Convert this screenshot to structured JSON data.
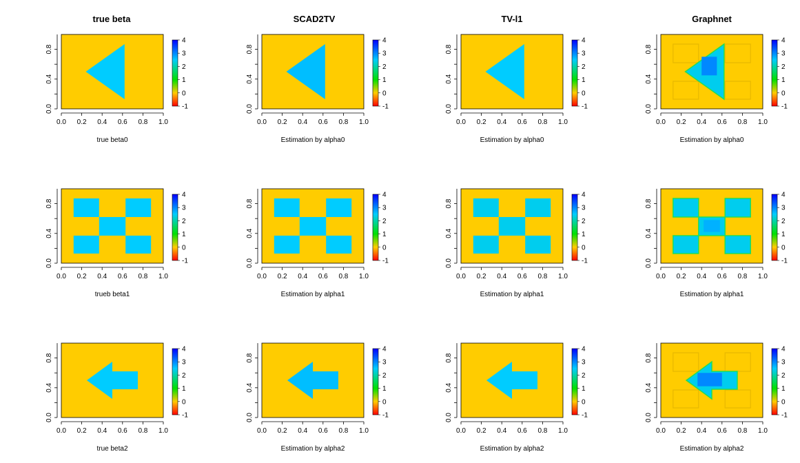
{
  "figure": {
    "column_titles": [
      "true beta",
      "SCAD2TV",
      "TV-l1",
      "Graphnet"
    ]
  },
  "colors": {
    "background_field": "#FFCC00",
    "signal_region": "#1ACCF2",
    "signal_region_strong": "#1080E8",
    "colorbar_stops": [
      "#FF0000",
      "#FFCC00",
      "#00E000",
      "#00CCFF",
      "#0000FF"
    ]
  },
  "chart_data": [
    {
      "type": "heatmap",
      "row": 0,
      "col": 0,
      "method": "true beta",
      "shape": "triangle",
      "xlabel": "true beta0",
      "xlim": [
        0,
        1
      ],
      "ylim": [
        0,
        1
      ],
      "x_ticks": [
        "0.0",
        "0.2",
        "0.4",
        "0.6",
        "0.8",
        "1.0"
      ],
      "y_ticks": [
        "0.0",
        "0.4",
        "0.8"
      ],
      "colorbar_range": [
        -1,
        4
      ],
      "colorbar_ticks": [
        "-1",
        "0",
        "1",
        "2",
        "3",
        "4"
      ],
      "background_value": 0,
      "region_value": 2.5
    },
    {
      "type": "heatmap",
      "row": 0,
      "col": 1,
      "method": "SCAD2TV",
      "shape": "triangle",
      "xlabel": "Estimation by alpha0",
      "xlim": [
        0,
        1
      ],
      "ylim": [
        0,
        1
      ],
      "x_ticks": [
        "0.0",
        "0.2",
        "0.4",
        "0.6",
        "0.8",
        "1.0"
      ],
      "y_ticks": [
        "0.0",
        "0.4",
        "0.8"
      ],
      "colorbar_range": [
        -1,
        4
      ],
      "colorbar_ticks": [
        "-1",
        "0",
        "1",
        "2",
        "3",
        "4"
      ],
      "background_value": 0,
      "region_value": 2.6
    },
    {
      "type": "heatmap",
      "row": 0,
      "col": 2,
      "method": "TV-l1",
      "shape": "triangle",
      "xlabel": "Estimation by alpha0",
      "xlim": [
        0,
        1
      ],
      "ylim": [
        0,
        1
      ],
      "x_ticks": [
        "0.0",
        "0.2",
        "0.4",
        "0.6",
        "0.8",
        "1.0"
      ],
      "y_ticks": [
        "0.0",
        "0.4",
        "0.8"
      ],
      "colorbar_range": [
        -1,
        4
      ],
      "colorbar_ticks": [
        "-1",
        "0",
        "1",
        "2",
        "3",
        "4"
      ],
      "background_value": 0,
      "region_value": 2.5
    },
    {
      "type": "heatmap",
      "row": 0,
      "col": 3,
      "method": "Graphnet",
      "shape": "triangle",
      "xlabel": "Estimation by alpha0",
      "xlim": [
        0,
        1
      ],
      "ylim": [
        0,
        1
      ],
      "x_ticks": [
        "0.0",
        "0.2",
        "0.4",
        "0.6",
        "0.8",
        "1.0"
      ],
      "y_ticks": [
        "0.0",
        "0.4",
        "0.8"
      ],
      "colorbar_range": [
        -1,
        4
      ],
      "colorbar_ticks": [
        "-1",
        "0",
        "1",
        "2",
        "3",
        "4"
      ],
      "background_value": 0,
      "region_value": 3.0
    },
    {
      "type": "heatmap",
      "row": 1,
      "col": 0,
      "method": "true beta",
      "shape": "checkerboard",
      "xlabel": "trueb beta1",
      "xlim": [
        0,
        1
      ],
      "ylim": [
        0,
        1
      ],
      "x_ticks": [
        "0.0",
        "0.2",
        "0.4",
        "0.6",
        "0.8",
        "1.0"
      ],
      "y_ticks": [
        "0.0",
        "0.4",
        "0.8"
      ],
      "colorbar_range": [
        -1,
        4
      ],
      "colorbar_ticks": [
        "-1",
        "0",
        "1",
        "2",
        "3",
        "4"
      ],
      "background_value": 0,
      "region_value": 2.5
    },
    {
      "type": "heatmap",
      "row": 1,
      "col": 1,
      "method": "SCAD2TV",
      "shape": "checkerboard",
      "xlabel": "Estimation by alpha1",
      "xlim": [
        0,
        1
      ],
      "ylim": [
        0,
        1
      ],
      "x_ticks": [
        "0.0",
        "0.2",
        "0.4",
        "0.6",
        "0.8",
        "1.0"
      ],
      "y_ticks": [
        "0.0",
        "0.4",
        "0.8"
      ],
      "colorbar_range": [
        -1,
        4
      ],
      "colorbar_ticks": [
        "-1",
        "0",
        "1",
        "2",
        "3",
        "4"
      ],
      "background_value": 0,
      "region_value": 2.5
    },
    {
      "type": "heatmap",
      "row": 1,
      "col": 2,
      "method": "TV-l1",
      "shape": "checkerboard",
      "xlabel": "Estimation by alpha1",
      "xlim": [
        0,
        1
      ],
      "ylim": [
        0,
        1
      ],
      "x_ticks": [
        "0.0",
        "0.2",
        "0.4",
        "0.6",
        "0.8",
        "1.0"
      ],
      "y_ticks": [
        "0.0",
        "0.4",
        "0.8"
      ],
      "colorbar_range": [
        -1,
        4
      ],
      "colorbar_ticks": [
        "-1",
        "0",
        "1",
        "2",
        "3",
        "4"
      ],
      "background_value": 0,
      "region_value": 2.4
    },
    {
      "type": "heatmap",
      "row": 1,
      "col": 3,
      "method": "Graphnet",
      "shape": "checkerboard",
      "xlabel": "Estimation by alpha1",
      "xlim": [
        0,
        1
      ],
      "ylim": [
        0,
        1
      ],
      "x_ticks": [
        "0.0",
        "0.2",
        "0.4",
        "0.6",
        "0.8",
        "1.0"
      ],
      "y_ticks": [
        "0.0",
        "0.4",
        "0.8"
      ],
      "colorbar_range": [
        -1,
        4
      ],
      "colorbar_ticks": [
        "-1",
        "0",
        "1",
        "2",
        "3",
        "4"
      ],
      "background_value": 0,
      "region_value": 2.7
    },
    {
      "type": "heatmap",
      "row": 2,
      "col": 0,
      "method": "true beta",
      "shape": "arrow",
      "xlabel": "true beta2",
      "xlim": [
        0,
        1
      ],
      "ylim": [
        0,
        1
      ],
      "x_ticks": [
        "0.0",
        "0.2",
        "0.4",
        "0.6",
        "0.8",
        "1.0"
      ],
      "y_ticks": [
        "0.0",
        "0.4",
        "0.8"
      ],
      "colorbar_range": [
        -1,
        4
      ],
      "colorbar_ticks": [
        "-1",
        "0",
        "1",
        "2",
        "3",
        "4"
      ],
      "background_value": 0,
      "region_value": 2.5
    },
    {
      "type": "heatmap",
      "row": 2,
      "col": 1,
      "method": "SCAD2TV",
      "shape": "arrow",
      "xlabel": "Estimation by alpha2",
      "xlim": [
        0,
        1
      ],
      "ylim": [
        0,
        1
      ],
      "x_ticks": [
        "0.0",
        "0.2",
        "0.4",
        "0.6",
        "0.8",
        "1.0"
      ],
      "y_ticks": [
        "0.0",
        "0.4",
        "0.8"
      ],
      "colorbar_range": [
        -1,
        4
      ],
      "colorbar_ticks": [
        "-1",
        "0",
        "1",
        "2",
        "3",
        "4"
      ],
      "background_value": 0,
      "region_value": 2.6
    },
    {
      "type": "heatmap",
      "row": 2,
      "col": 2,
      "method": "TV-l1",
      "shape": "arrow",
      "xlabel": "Estimation by alpha2",
      "xlim": [
        0,
        1
      ],
      "ylim": [
        0,
        1
      ],
      "x_ticks": [
        "0.0",
        "0.2",
        "0.4",
        "0.6",
        "0.8",
        "1.0"
      ],
      "y_ticks": [
        "0.0",
        "0.4",
        "0.8"
      ],
      "colorbar_range": [
        -1,
        4
      ],
      "colorbar_ticks": [
        "-1",
        "0",
        "1",
        "2",
        "3",
        "4"
      ],
      "background_value": 0,
      "region_value": 2.5
    },
    {
      "type": "heatmap",
      "row": 2,
      "col": 3,
      "method": "Graphnet",
      "shape": "arrow",
      "xlabel": "Estimation by alpha2",
      "xlim": [
        0,
        1
      ],
      "ylim": [
        0,
        1
      ],
      "x_ticks": [
        "0.0",
        "0.2",
        "0.4",
        "0.6",
        "0.8",
        "1.0"
      ],
      "y_ticks": [
        "0.0",
        "0.4",
        "0.8"
      ],
      "colorbar_range": [
        -1,
        4
      ],
      "colorbar_ticks": [
        "-1",
        "0",
        "1",
        "2",
        "3",
        "4"
      ],
      "background_value": 0,
      "region_value": 3.0
    }
  ]
}
